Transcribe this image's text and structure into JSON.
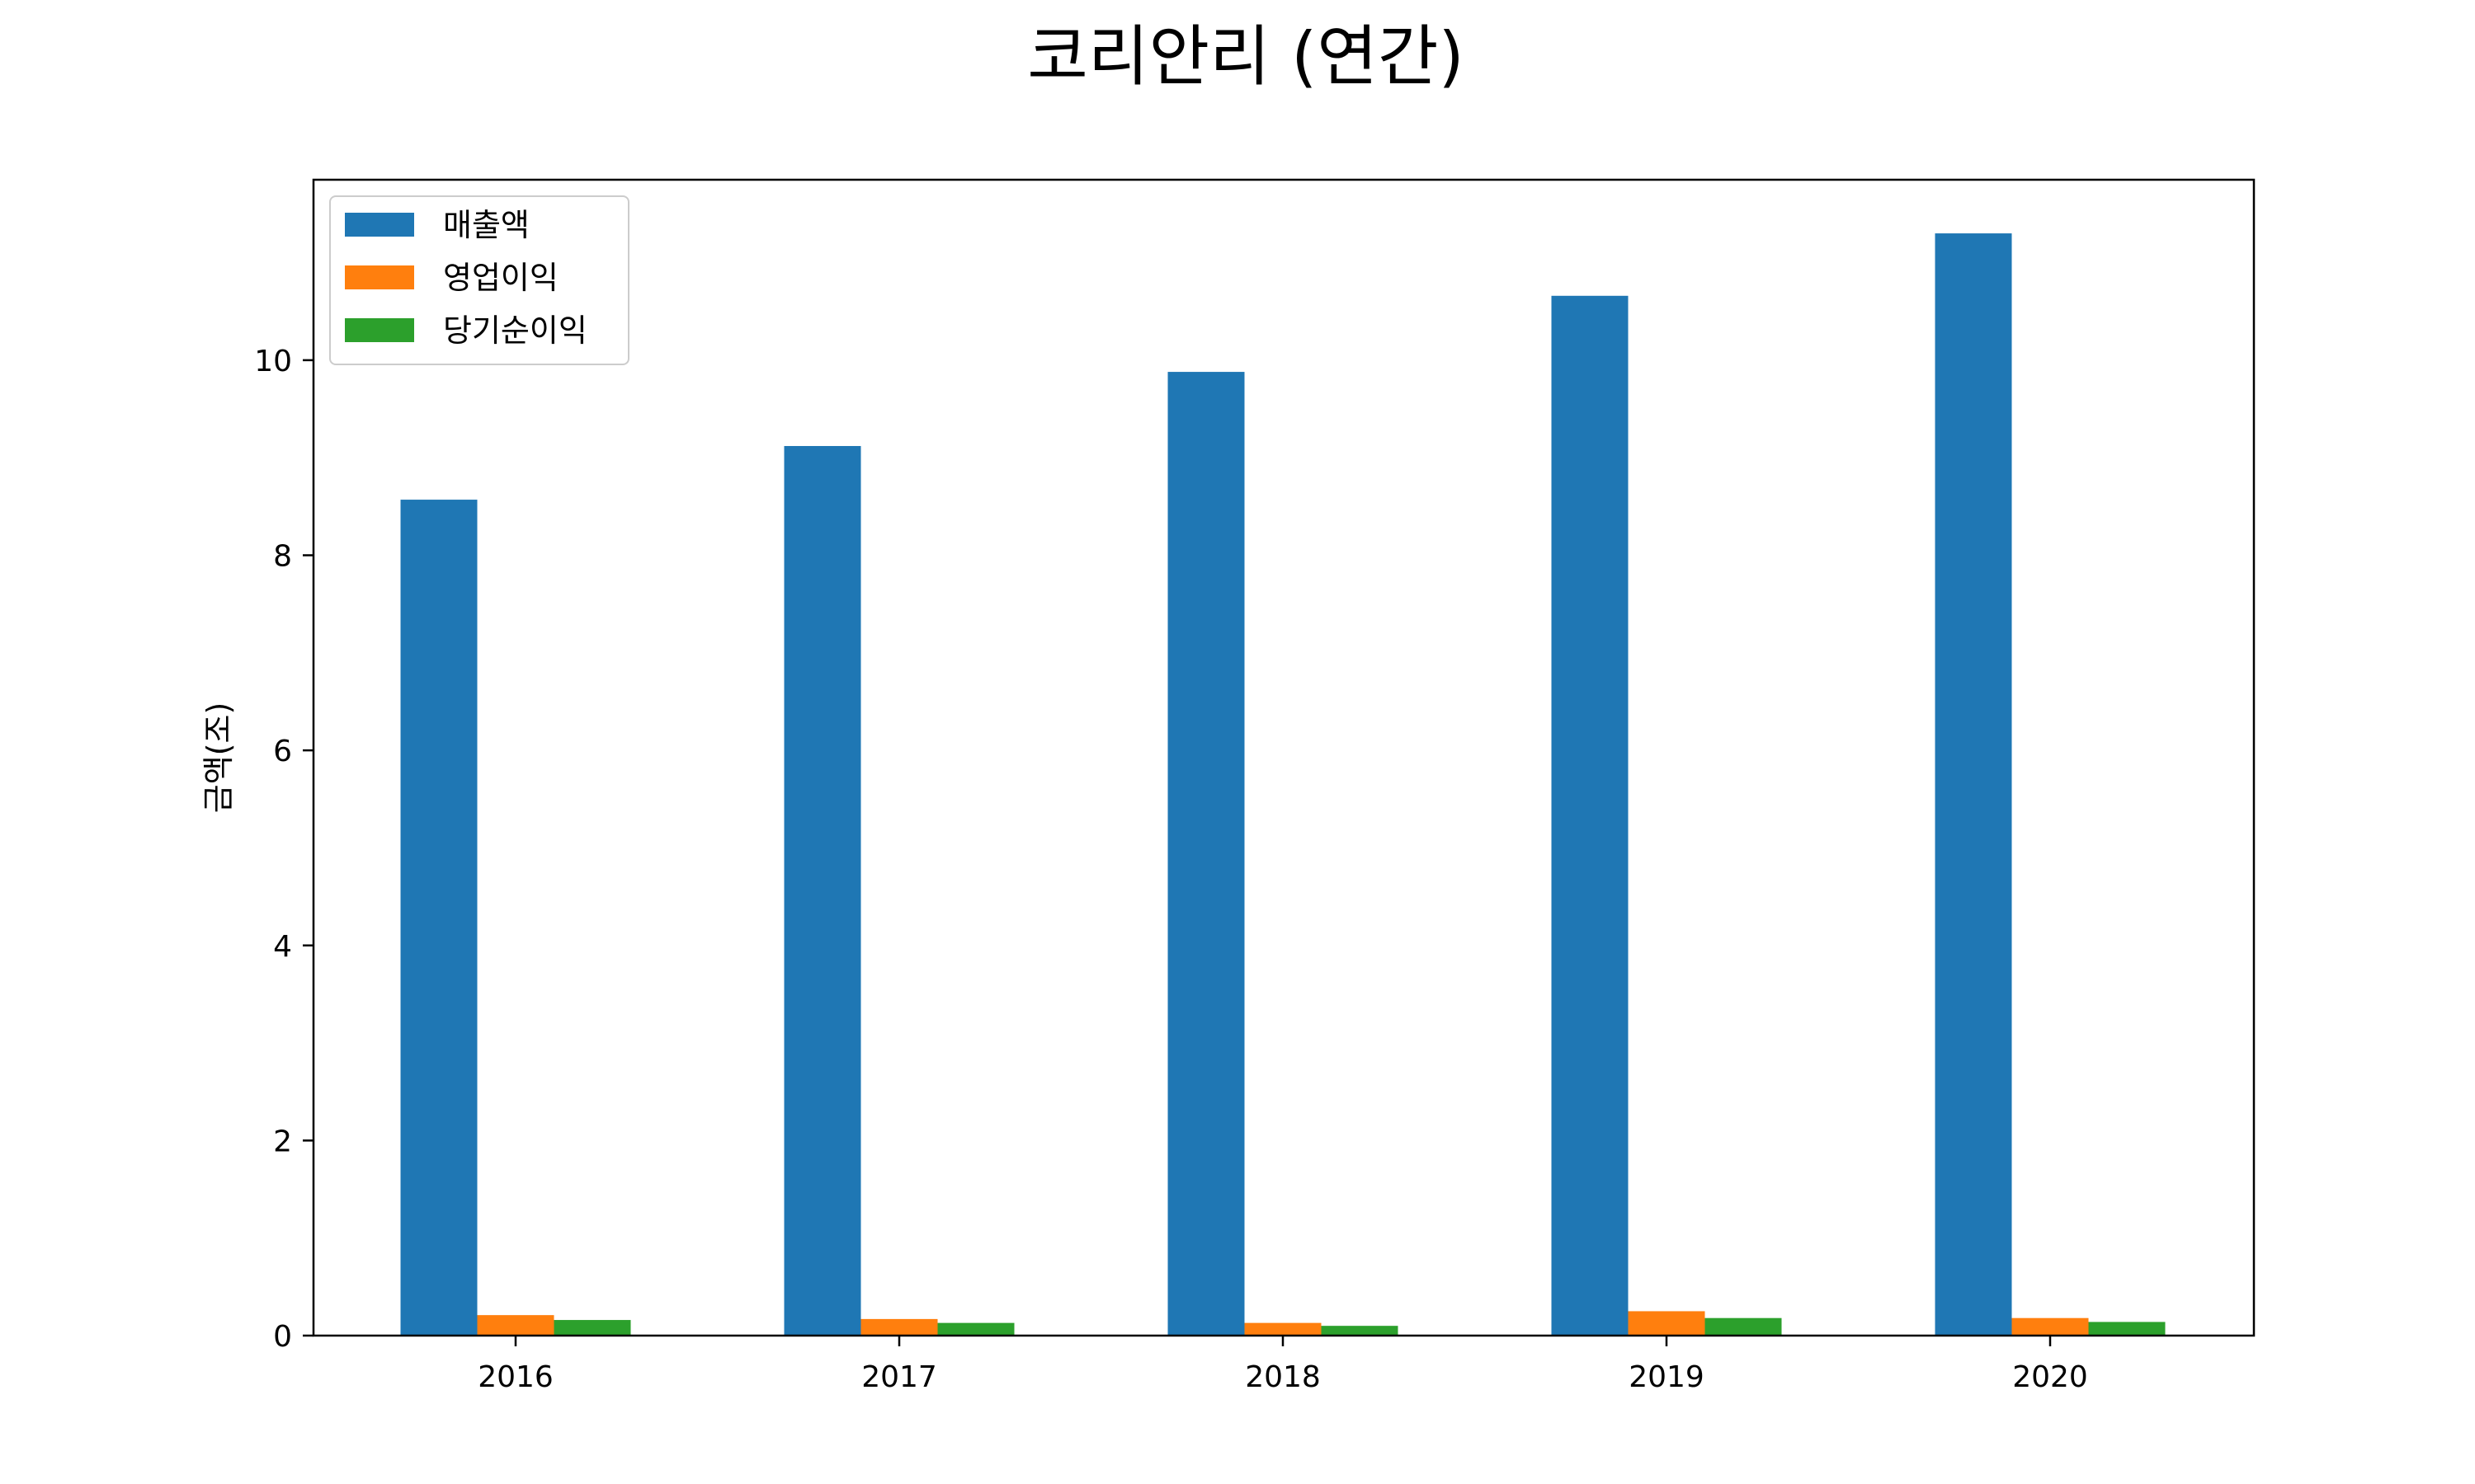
{
  "chart_data": {
    "type": "bar",
    "title": "코리안리 (연간)",
    "xlabel": "",
    "ylabel": "금액(조)",
    "categories": [
      "2016",
      "2017",
      "2018",
      "2019",
      "2020"
    ],
    "series": [
      {
        "name": "매출액",
        "color": "#1f77b4",
        "values": [
          8.57,
          9.12,
          9.88,
          10.66,
          11.3
        ]
      },
      {
        "name": "영업이익",
        "color": "#ff7f0e",
        "values": [
          0.21,
          0.17,
          0.13,
          0.25,
          0.18
        ]
      },
      {
        "name": "당기순이익",
        "color": "#2ca02c",
        "values": [
          0.16,
          0.13,
          0.1,
          0.18,
          0.14
        ]
      }
    ],
    "ylim": [
      0,
      11.85
    ],
    "yticks": [
      "0",
      "2",
      "4",
      "6",
      "8",
      "10"
    ],
    "grid": false,
    "legend_position": "top-left"
  }
}
